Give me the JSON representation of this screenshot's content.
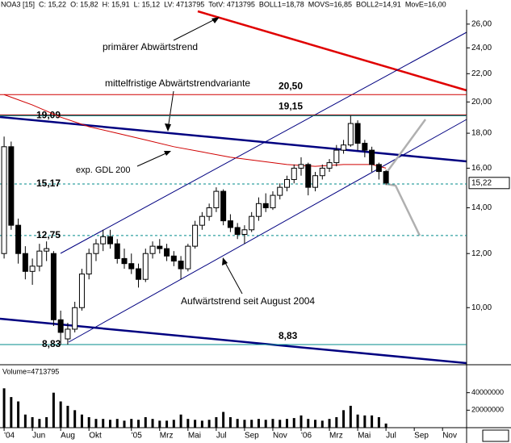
{
  "chart_data": {
    "type": "candlestick",
    "header": [
      {
        "text": "NOA3 [15]",
        "color": "#000000"
      },
      {
        "text": "C: 15,22",
        "color": "#000000"
      },
      {
        "text": "O: 15,82",
        "color": "#000000"
      },
      {
        "text": "H: 15,91",
        "color": "#000000"
      },
      {
        "text": "L: 15,12",
        "color": "#000000"
      },
      {
        "text": "LV: 4713795",
        "color": "#000000"
      },
      {
        "text": "TotV: 4713795",
        "color": "#000000"
      },
      {
        "text": "BOLL1=18,78",
        "color": "#a0a0a0"
      },
      {
        "text": "MOVS=16,85",
        "color": "#a0a0a0"
      },
      {
        "text": "BOLL2=14,91",
        "color": "#a0a0a0"
      },
      {
        "text": "MovE=16,00",
        "color": "#e00000"
      }
    ],
    "annotations": {
      "primary": "primärer Abwärtstrend",
      "medium": "mittelfristige Abwärtstrendvariante",
      "uptrend": "Aufwärtstrend seit August 2004"
    },
    "last_price": {
      "value": 15.22,
      "label": "15,22"
    },
    "x": [
      0,
      0.5,
      1,
      1.5,
      2,
      2.5,
      3,
      3.5,
      4,
      4.5,
      5,
      5.5,
      6,
      6.5,
      7,
      7.5,
      8,
      8.5,
      9,
      9.5,
      10,
      10.5,
      11,
      11.5,
      12,
      12.5,
      13,
      13.5,
      14,
      14.5,
      15,
      15.5,
      16,
      16.5,
      17,
      17.5,
      18,
      18.5,
      19,
      19.5,
      20,
      20.5,
      21,
      21.5,
      22,
      22.5,
      23,
      23.5,
      24,
      24.5,
      25,
      25.5,
      26,
      26.5,
      27
    ],
    "open": [
      12.0,
      17.2,
      13.2,
      12.0,
      11.3,
      11.5,
      12.1,
      12.0,
      9.6,
      9.0,
      9.3,
      10.0,
      11.2,
      12.0,
      12.4,
      12.7,
      12.4,
      11.8,
      11.6,
      11.4,
      11.0,
      12.0,
      12.3,
      12.2,
      11.9,
      11.7,
      11.4,
      12.3,
      13.2,
      13.6,
      14.0,
      14.8,
      13.4,
      13.1,
      12.8,
      13.0,
      13.6,
      14.2,
      14.0,
      14.6,
      15.0,
      15.4,
      16.0,
      16.2,
      15.0,
      15.6,
      16.0,
      16.3,
      17.0,
      17.3,
      18.6,
      17.4,
      17.0,
      16.2,
      15.82
    ],
    "high": [
      17.8,
      17.5,
      13.5,
      12.3,
      11.8,
      12.4,
      12.5,
      12.1,
      9.9,
      9.5,
      10.2,
      11.4,
      12.2,
      12.6,
      13.0,
      13.0,
      12.6,
      12.2,
      12.0,
      11.6,
      12.2,
      12.5,
      12.6,
      12.4,
      12.1,
      11.9,
      12.4,
      13.4,
      13.8,
      14.2,
      15.0,
      14.9,
      13.7,
      13.3,
      13.2,
      13.8,
      14.5,
      14.7,
      14.8,
      15.2,
      15.6,
      16.2,
      16.6,
      16.3,
      15.8,
      16.2,
      16.5,
      17.3,
      17.6,
      19.1,
      18.8,
      17.6,
      17.2,
      16.3,
      15.91
    ],
    "low": [
      11.8,
      13.0,
      11.6,
      11.0,
      10.8,
      11.3,
      11.7,
      9.4,
      8.83,
      8.83,
      9.2,
      9.9,
      11.0,
      11.7,
      12.1,
      12.2,
      11.6,
      11.4,
      11.2,
      10.7,
      10.9,
      11.8,
      12.0,
      11.7,
      11.5,
      11.0,
      11.3,
      12.2,
      13.0,
      13.4,
      13.8,
      13.2,
      12.9,
      12.6,
      12.4,
      12.9,
      13.4,
      13.8,
      13.9,
      14.4,
      14.8,
      15.2,
      15.6,
      14.6,
      14.8,
      15.4,
      15.8,
      16.1,
      16.8,
      17.2,
      17.0,
      16.6,
      15.8,
      15.4,
      15.12
    ],
    "close": [
      17.2,
      13.2,
      12.0,
      11.3,
      11.5,
      12.1,
      12.2,
      9.6,
      9.2,
      9.3,
      10.0,
      11.2,
      12.0,
      12.4,
      12.7,
      12.4,
      11.8,
      11.6,
      11.4,
      11.0,
      12.0,
      12.3,
      12.2,
      11.9,
      11.7,
      11.4,
      12.3,
      13.2,
      13.6,
      14.0,
      14.8,
      13.4,
      13.1,
      12.8,
      13.0,
      13.6,
      14.2,
      14.0,
      14.6,
      15.0,
      15.4,
      16.0,
      16.2,
      15.0,
      15.6,
      16.0,
      16.3,
      17.0,
      17.3,
      18.6,
      17.4,
      17.0,
      16.2,
      15.82,
      15.22
    ],
    "ema": {
      "name": "exp. GDL 200",
      "color": "#d00000",
      "x": [
        0,
        2,
        4,
        6,
        8,
        10,
        12,
        14,
        16,
        18,
        20,
        22,
        24,
        26,
        27
      ],
      "values": [
        20.5,
        19.8,
        19.0,
        18.4,
        18.0,
        17.6,
        17.2,
        16.9,
        16.6,
        16.4,
        16.2,
        16.1,
        16.2,
        16.2,
        16.0
      ]
    },
    "volume": {
      "label": "Volume=4713795",
      "values": [
        45000000,
        35000000,
        30000000,
        15000000,
        12000000,
        10000000,
        12000000,
        40000000,
        30000000,
        25000000,
        20000000,
        15000000,
        12000000,
        10000000,
        10000000,
        9000000,
        10000000,
        8000000,
        10000000,
        9000000,
        12000000,
        10000000,
        8000000,
        8000000,
        9000000,
        15000000,
        10000000,
        9000000,
        8000000,
        9000000,
        12000000,
        18000000,
        12000000,
        10000000,
        9000000,
        9000000,
        10000000,
        9000000,
        10000000,
        9000000,
        10000000,
        11000000,
        14000000,
        10000000,
        9000000,
        8000000,
        10000000,
        12000000,
        20000000,
        25000000,
        15000000,
        14000000,
        14000000,
        12000000,
        4713795
      ],
      "ylim": [
        0,
        72000000
      ],
      "yticks": [
        20000000,
        40000000
      ]
    },
    "levels": [
      {
        "value": 20.5,
        "label": "20,50",
        "color": "#d00000",
        "dash": false
      },
      {
        "value": 19.15,
        "label": "19,15",
        "color": "#8b0000",
        "dash": false
      },
      {
        "value": 19.09,
        "label": "19,09",
        "color": "#008b8b",
        "dash": false
      },
      {
        "value": 15.17,
        "label": "15,17",
        "color": "#008b8b",
        "dash": true
      },
      {
        "value": 12.75,
        "label": "12,75",
        "color": "#008b8b",
        "dash": true
      },
      {
        "value": 8.83,
        "label": "8,83",
        "color": "#008b8b",
        "dash": false
      }
    ],
    "low_label": {
      "value": 8.83,
      "label": "8,83"
    },
    "ylim": [
      8.25,
      28.2
    ],
    "log_scale": true,
    "yticks": [
      {
        "value": 10,
        "label": "10,00"
      },
      {
        "value": 12,
        "label": "12,00"
      },
      {
        "value": 14,
        "label": "14,00"
      },
      {
        "value": 16,
        "label": "16,00"
      },
      {
        "value": 18,
        "label": "18,00"
      },
      {
        "value": 20,
        "label": "20,00"
      },
      {
        "value": 22,
        "label": "22,00"
      },
      {
        "value": 24,
        "label": "24,00"
      },
      {
        "value": 26,
        "label": "26,00"
      }
    ],
    "xlim": [
      -0.29,
      32.7
    ],
    "xticks": [
      {
        "value": 0,
        "label": "'04"
      },
      {
        "value": 2,
        "label": "Jun"
      },
      {
        "value": 4,
        "label": "Aug"
      },
      {
        "value": 6,
        "label": "Okt"
      },
      {
        "value": 9,
        "label": "'05"
      },
      {
        "value": 11,
        "label": "Mrz"
      },
      {
        "value": 13,
        "label": "Mai"
      },
      {
        "value": 15,
        "label": "Jul"
      },
      {
        "value": 17,
        "label": "Sep"
      },
      {
        "value": 19,
        "label": "Nov"
      },
      {
        "value": 21,
        "label": "'06"
      },
      {
        "value": 23,
        "label": "Mrz"
      },
      {
        "value": 25,
        "label": "Mai"
      },
      {
        "value": 27,
        "label": "Jul"
      },
      {
        "value": 29,
        "label": "Sep"
      },
      {
        "value": 31,
        "label": "Nov"
      }
    ]
  }
}
